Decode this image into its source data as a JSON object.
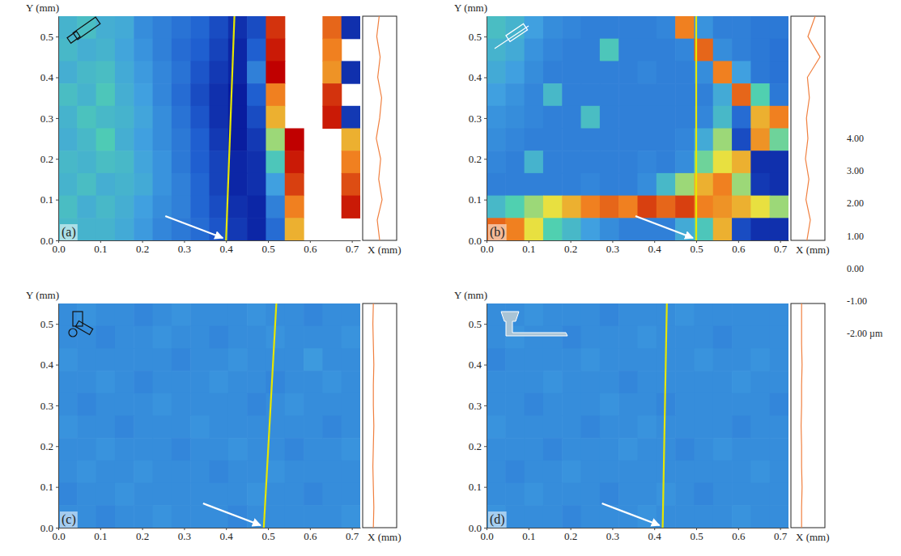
{
  "chart_data": [
    {
      "type": "heatmap",
      "panel": "(a)",
      "x_label": "X (mm)",
      "y_label": "Y (mm)",
      "xlim": [
        0,
        0.72
      ],
      "ylim": [
        0,
        0.55
      ],
      "xticks": [
        {
          "value": 0,
          "label": "0.0"
        },
        0.1,
        0.2,
        0.3,
        0.4,
        0.5,
        0.6,
        0.7
      ],
      "yticks": [
        {
          "value": 0,
          "label": "0.0"
        },
        0.1,
        0.2,
        0.3,
        0.4,
        0.5
      ],
      "cells": [
        [
          0.4,
          0.6,
          0.3,
          0.2,
          -0.3,
          -0.5,
          -0.7,
          -0.9,
          -1.2,
          -1.5,
          -1.2,
          3.6,
          null,
          null,
          3.2,
          -1.5
        ],
        [
          0.5,
          0.3,
          0.4,
          0.1,
          -0.2,
          -0.5,
          -0.8,
          -1.0,
          -1.3,
          -1.6,
          -1.0,
          3.8,
          null,
          null,
          3.0,
          null
        ],
        [
          0.3,
          0.5,
          0.6,
          0.2,
          -0.1,
          -0.4,
          -0.7,
          -1.1,
          -1.4,
          -1.6,
          -0.5,
          4.0,
          null,
          null,
          2.8,
          -1.5
        ],
        [
          0.6,
          0.4,
          0.8,
          0.3,
          0.0,
          -0.4,
          -0.8,
          -1.2,
          -1.5,
          -1.7,
          -1.0,
          3.0,
          null,
          null,
          3.6,
          null
        ],
        [
          0.4,
          0.7,
          0.5,
          0.4,
          0.1,
          -0.3,
          -0.7,
          -1.1,
          -1.5,
          -1.7,
          -1.2,
          2.5,
          null,
          null,
          3.8,
          -1.4
        ],
        [
          0.3,
          0.5,
          0.9,
          0.3,
          0.0,
          -0.3,
          -0.6,
          -1.0,
          -1.4,
          -1.7,
          -1.4,
          1.5,
          4.0,
          null,
          null,
          2.5
        ],
        [
          0.5,
          0.4,
          0.6,
          0.5,
          0.1,
          -0.2,
          -0.6,
          -1.0,
          -1.3,
          -1.6,
          -1.5,
          0.8,
          3.8,
          null,
          null,
          3.0
        ],
        [
          0.4,
          0.6,
          0.3,
          0.4,
          0.2,
          -0.2,
          -0.5,
          -0.9,
          -1.3,
          -1.6,
          -1.5,
          0.0,
          3.5,
          null,
          null,
          3.4
        ],
        [
          0.6,
          0.3,
          0.5,
          0.3,
          0.0,
          -0.3,
          -0.5,
          -0.9,
          -1.2,
          -1.5,
          -1.6,
          -0.5,
          3.0,
          null,
          null,
          3.8
        ],
        [
          0.5,
          0.4,
          0.4,
          0.2,
          -0.1,
          -0.4,
          -0.6,
          -0.8,
          -1.1,
          -1.4,
          -1.6,
          -0.8,
          2.5,
          null,
          null,
          null
        ]
      ],
      "profile_line_x": [
        0.4,
        0.42
      ],
      "profile": [
        1.0,
        0.5,
        1.5,
        0.8,
        1.2,
        0.3,
        1.0,
        1.4,
        0.6,
        1.1,
        0.4,
        0.9
      ]
    },
    {
      "type": "heatmap",
      "panel": "(b)",
      "x_label": "X (mm)",
      "y_label": "Y (mm)",
      "xlim": [
        0,
        0.72
      ],
      "ylim": [
        0,
        0.55
      ],
      "xticks": [
        {
          "value": 0,
          "label": "0.0"
        },
        0.1,
        0.2,
        0.3,
        0.4,
        0.5,
        0.6,
        0.7
      ],
      "yticks": [
        {
          "value": 0,
          "label": "0.0"
        },
        0.1,
        0.2,
        0.3,
        0.4,
        0.5
      ],
      "cells": [
        [
          0.6,
          0.4,
          0.0,
          -0.3,
          -0.4,
          -0.5,
          -0.5,
          -0.5,
          -0.5,
          -0.4,
          3.0,
          -0.2,
          -0.5,
          -0.5,
          -0.6,
          -0.6
        ],
        [
          0.4,
          0.2,
          -0.2,
          -0.4,
          -0.5,
          -0.5,
          0.8,
          -0.5,
          -0.5,
          -0.5,
          -0.4,
          3.2,
          -0.3,
          -0.5,
          -0.6,
          -0.7
        ],
        [
          0.2,
          0.0,
          -0.3,
          -0.5,
          -0.5,
          -0.5,
          -0.5,
          -0.5,
          -0.4,
          -0.5,
          -0.5,
          -0.3,
          3.0,
          0.0,
          -0.6,
          -0.7
        ],
        [
          0.0,
          -0.2,
          -0.4,
          0.5,
          -0.5,
          -0.5,
          -0.5,
          -0.5,
          -0.5,
          -0.5,
          -0.5,
          -0.5,
          0.2,
          3.2,
          1.0,
          -0.6
        ],
        [
          -0.2,
          -0.3,
          -0.4,
          -0.5,
          -0.5,
          0.6,
          -0.5,
          -0.5,
          -0.5,
          -0.5,
          -0.5,
          -0.4,
          0.5,
          -0.8,
          2.5,
          3.0
        ],
        [
          -0.3,
          -0.4,
          -0.5,
          -0.5,
          -0.5,
          -0.5,
          -0.5,
          -0.5,
          -0.5,
          -0.5,
          -0.4,
          0.2,
          1.5,
          -1.2,
          2.8,
          1.2
        ],
        [
          -0.4,
          -0.5,
          0.4,
          -0.5,
          -0.5,
          -0.5,
          -0.5,
          -0.5,
          -0.4,
          -0.5,
          -0.3,
          1.2,
          2.0,
          2.5,
          -1.5,
          -1.5
        ],
        [
          -0.5,
          -0.5,
          -0.5,
          -0.5,
          -0.5,
          -0.4,
          -0.5,
          -0.5,
          -0.3,
          0.5,
          1.5,
          2.5,
          3.0,
          1.5,
          -1.4,
          -1.5
        ],
        [
          0.5,
          1.0,
          1.5,
          2.0,
          2.5,
          3.0,
          3.2,
          3.0,
          3.5,
          3.2,
          3.5,
          3.0,
          2.8,
          2.5,
          2.0,
          1.5
        ],
        [
          3.2,
          3.0,
          2.0,
          1.0,
          0.5,
          0.0,
          -0.3,
          -0.5,
          -0.5,
          -0.5,
          0.2,
          0.8,
          2.5,
          -1.2,
          -1.5,
          -1.5
        ]
      ],
      "profile_line_x": [
        0.5,
        0.5
      ],
      "profile": [
        0.8,
        1.5,
        0.6,
        1.2,
        0.5,
        1.0,
        0.7,
        1.3,
        0.9,
        3.5,
        1.0,
        2.5
      ]
    },
    {
      "type": "heatmap",
      "panel": "(c)",
      "x_label": "X (mm)",
      "y_label": "Y (mm)",
      "xlim": [
        0,
        0.72
      ],
      "ylim": [
        0,
        0.55
      ],
      "xticks": [
        {
          "value": 0,
          "label": "0.0"
        },
        0.1,
        0.2,
        0.3,
        0.4,
        0.5,
        0.6,
        0.7
      ],
      "yticks": [
        {
          "value": 0,
          "label": "0.0"
        },
        0.1,
        0.2,
        0.3,
        0.4,
        0.5
      ],
      "cells": [
        [
          -0.3,
          -0.2,
          -0.3,
          -0.3,
          -0.4,
          -0.3,
          -0.2,
          -0.3,
          -0.3,
          -0.3,
          -0.2,
          -0.3,
          -0.3,
          -0.4,
          -0.3,
          -0.3
        ],
        [
          -0.3,
          -0.3,
          -0.4,
          -0.3,
          -0.3,
          -0.2,
          -0.3,
          -0.3,
          -0.4,
          -0.3,
          -0.3,
          -0.2,
          -0.3,
          -0.3,
          -0.3,
          -0.2
        ],
        [
          -0.2,
          -0.3,
          -0.3,
          -0.3,
          -0.3,
          -0.3,
          -0.4,
          -0.3,
          -0.3,
          -0.2,
          -0.3,
          -0.3,
          -0.3,
          -0.1,
          -0.3,
          -0.3
        ],
        [
          -0.3,
          -0.3,
          -0.2,
          -0.3,
          -0.4,
          -0.3,
          -0.3,
          -0.3,
          -0.2,
          -0.3,
          -0.3,
          -0.4,
          -0.3,
          -0.3,
          -0.2,
          -0.3
        ],
        [
          -0.3,
          -0.4,
          -0.3,
          -0.3,
          -0.3,
          -0.2,
          -0.3,
          -0.3,
          -0.3,
          -0.3,
          -0.4,
          -0.3,
          -0.2,
          -0.3,
          -0.3,
          -0.3
        ],
        [
          -0.2,
          -0.3,
          -0.3,
          -0.4,
          -0.3,
          -0.3,
          -0.3,
          -0.2,
          -0.3,
          -0.3,
          -0.3,
          -0.3,
          -0.3,
          -0.3,
          -0.4,
          -0.3
        ],
        [
          -0.3,
          -0.3,
          -0.2,
          -0.3,
          -0.3,
          -0.3,
          -0.4,
          -0.3,
          -0.3,
          -0.2,
          -0.3,
          -0.3,
          -0.4,
          -0.3,
          -0.3,
          -0.2
        ],
        [
          -0.3,
          -0.2,
          -0.3,
          -0.3,
          -0.2,
          -0.3,
          -0.3,
          -0.3,
          -0.4,
          -0.3,
          -0.3,
          -0.2,
          -0.3,
          -0.3,
          -0.3,
          -0.3
        ],
        [
          -0.4,
          -0.3,
          -0.3,
          -0.2,
          -0.3,
          -0.3,
          -0.3,
          -0.3,
          -0.3,
          -0.3,
          -0.2,
          -0.3,
          -0.3,
          -0.4,
          -0.3,
          -0.3
        ],
        [
          -0.3,
          -0.3,
          -0.4,
          -0.3,
          -0.3,
          -0.2,
          -0.3,
          -0.3,
          -0.3,
          -0.4,
          -0.3,
          -0.3,
          -0.3,
          -0.3,
          -0.3,
          -0.2
        ]
      ],
      "profile_line_x": [
        0.49,
        0.52
      ],
      "profile": [
        -0.3,
        -0.2,
        -0.3,
        -0.4,
        -0.3,
        -0.2,
        -0.3,
        -0.3,
        -0.2,
        -0.3,
        -0.4,
        -0.3
      ]
    },
    {
      "type": "heatmap",
      "panel": "(d)",
      "x_label": "X (mm)",
      "y_label": "Y (mm)",
      "xlim": [
        0,
        0.72
      ],
      "ylim": [
        0,
        0.55
      ],
      "xticks": [
        {
          "value": 0,
          "label": "0.0"
        },
        0.1,
        0.2,
        0.3,
        0.4,
        0.5,
        0.6,
        0.7
      ],
      "yticks": [
        {
          "value": 0,
          "label": "0.0"
        },
        0.1,
        0.2,
        0.3,
        0.4,
        0.5
      ],
      "cells": [
        [
          -0.3,
          -0.3,
          -0.2,
          -0.3,
          -0.3,
          -0.3,
          -0.4,
          -0.3,
          -0.3,
          -0.3,
          -0.2,
          -0.3,
          -0.3,
          -0.3,
          -0.3,
          -0.3
        ],
        [
          -0.3,
          -0.2,
          -0.3,
          -0.3,
          -0.4,
          -0.3,
          -0.3,
          -0.3,
          -0.2,
          -0.3,
          -0.3,
          -0.3,
          -0.4,
          -0.3,
          -0.3,
          -0.3
        ],
        [
          -0.4,
          -0.3,
          -0.3,
          -0.3,
          -0.3,
          -0.2,
          -0.3,
          -0.3,
          -0.3,
          -0.3,
          -0.3,
          -0.2,
          -0.3,
          -0.3,
          -0.2,
          -0.3
        ],
        [
          -0.3,
          -0.3,
          -0.3,
          -0.2,
          -0.3,
          -0.3,
          -0.3,
          -0.4,
          -0.3,
          -0.3,
          -0.3,
          -0.3,
          -0.3,
          -0.2,
          -0.3,
          -0.3
        ],
        [
          -0.3,
          -0.3,
          -0.4,
          -0.3,
          -0.3,
          -0.3,
          -0.2,
          -0.3,
          -0.3,
          -0.4,
          -0.3,
          -0.3,
          -0.3,
          -0.3,
          -0.3,
          -0.4
        ],
        [
          -0.2,
          -0.3,
          -0.3,
          -0.3,
          -0.3,
          -0.4,
          -0.3,
          -0.3,
          -0.2,
          -0.3,
          -0.3,
          -0.3,
          -0.3,
          -0.4,
          -0.3,
          -0.3
        ],
        [
          -0.3,
          -0.3,
          -0.3,
          -0.4,
          -0.3,
          -0.3,
          -0.3,
          -0.2,
          -0.3,
          -0.3,
          -0.4,
          -0.3,
          -0.2,
          -0.3,
          -0.3,
          -0.3
        ],
        [
          -0.3,
          -0.4,
          -0.3,
          -0.3,
          -0.2,
          -0.3,
          -0.3,
          -0.3,
          -0.3,
          -0.3,
          -0.3,
          -0.3,
          -0.3,
          -0.3,
          -0.2,
          -0.3
        ],
        [
          -0.3,
          -0.3,
          -0.2,
          -0.3,
          -0.3,
          -0.3,
          -0.4,
          -0.3,
          -0.3,
          -0.2,
          -0.3,
          -0.4,
          -0.3,
          -0.3,
          -0.3,
          -0.3
        ],
        [
          -0.2,
          -0.3,
          -0.3,
          -0.3,
          -0.4,
          -0.3,
          -0.3,
          -0.3,
          -0.2,
          -0.3,
          -0.3,
          -0.3,
          -0.3,
          -0.2,
          -0.3,
          -0.3
        ]
      ],
      "profile_line_x": [
        0.42,
        0.43
      ],
      "profile": [
        -0.3,
        -0.3,
        -0.2,
        -0.3,
        -0.3,
        -0.4,
        -0.3,
        -0.3,
        -0.2,
        -0.3,
        -0.3,
        -0.3
      ]
    }
  ],
  "colorbar": {
    "range": [
      -2,
      4
    ],
    "ticks": [
      {
        "value": 4,
        "label": "4.00"
      },
      {
        "value": 3,
        "label": "3.00"
      },
      {
        "value": 2,
        "label": "2.00"
      },
      {
        "value": 1,
        "label": "1.00"
      },
      {
        "value": 0,
        "label": "0.00"
      },
      {
        "value": -1,
        "label": "-1.00"
      },
      {
        "value": -2,
        "label": "-2.00 µm"
      }
    ]
  }
}
